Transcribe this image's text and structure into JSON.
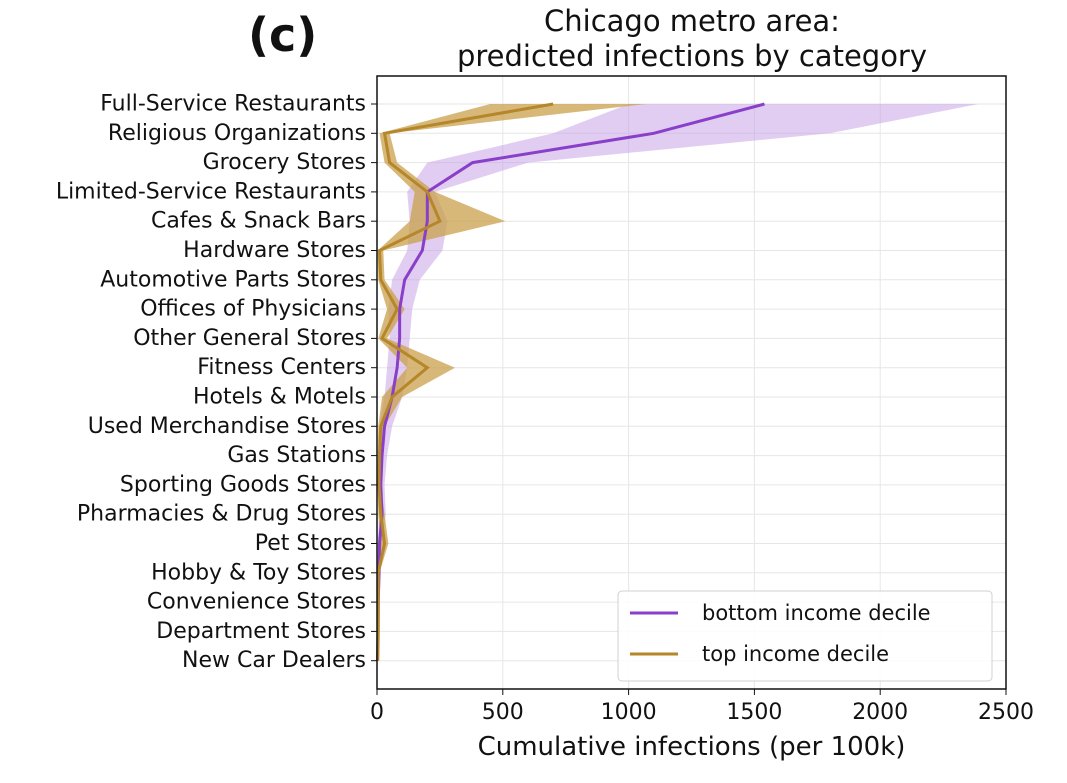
{
  "panel_label": "(c)",
  "chart_data": {
    "type": "line",
    "title_lines": [
      "Chicago metro area:",
      "predicted infections by category"
    ],
    "xlabel": "Cumulative infections (per 100k)",
    "ylabel": "",
    "xlim": [
      0,
      2500
    ],
    "xticks": [
      0,
      500,
      1000,
      1500,
      2000,
      2500
    ],
    "grid": true,
    "legend_position": "lower-right",
    "categories": [
      "Full-Service Restaurants",
      "Religious Organizations",
      "Grocery Stores",
      "Limited-Service Restaurants",
      "Cafes & Snack Bars",
      "Hardware Stores",
      "Automotive Parts Stores",
      "Offices of Physicians",
      "Other General Stores",
      "Fitness Centers",
      "Hotels & Motels",
      "Used Merchandise Stores",
      "Gas Stations",
      "Sporting Goods Stores",
      "Pharmacies & Drug Stores",
      "Pet Stores",
      "Hobby & Toy Stores",
      "Convenience Stores",
      "Department Stores",
      "New Car Dealers"
    ],
    "series": [
      {
        "name": "bottom income decile",
        "color": "#8a3fc9",
        "band_color": "#c49be6",
        "values": [
          1540,
          1100,
          380,
          200,
          200,
          180,
          110,
          90,
          90,
          80,
          60,
          30,
          20,
          15,
          20,
          10,
          8,
          5,
          4,
          2
        ],
        "lower": [
          1000,
          700,
          200,
          120,
          130,
          120,
          60,
          45,
          50,
          40,
          30,
          10,
          8,
          5,
          8,
          3,
          2,
          1,
          1,
          0
        ],
        "upper": [
          2390,
          1800,
          600,
          230,
          280,
          260,
          170,
          140,
          130,
          120,
          100,
          60,
          40,
          30,
          35,
          20,
          15,
          10,
          8,
          5
        ]
      },
      {
        "name": "top income decile",
        "color": "#b5862a",
        "band_color": "#c9a04b",
        "values": [
          700,
          30,
          50,
          200,
          250,
          10,
          15,
          80,
          20,
          200,
          60,
          15,
          10,
          8,
          15,
          30,
          5,
          5,
          5,
          3
        ],
        "lower": [
          450,
          10,
          30,
          150,
          130,
          3,
          5,
          40,
          5,
          120,
          20,
          5,
          3,
          2,
          5,
          15,
          1,
          1,
          1,
          0
        ],
        "upper": [
          1070,
          50,
          80,
          230,
          510,
          25,
          30,
          110,
          40,
          310,
          100,
          30,
          20,
          15,
          30,
          45,
          10,
          10,
          10,
          6
        ]
      }
    ]
  }
}
